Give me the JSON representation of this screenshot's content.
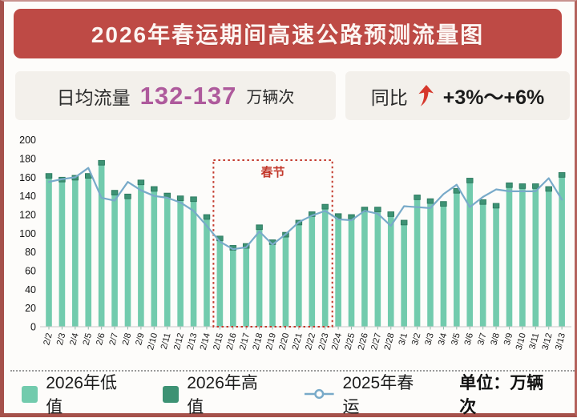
{
  "header": {
    "title": "2026年春运期间高速公路预测流量图"
  },
  "stats": {
    "daily": {
      "label": "日均流量",
      "value": "132-137",
      "unit": "万辆次",
      "value_color": "#ae5a9c"
    },
    "yoy": {
      "label": "同比",
      "arrow_icon": "up-arrow",
      "arrow_color": "#d6382c",
      "value": "+3%～+6%"
    }
  },
  "chart_data": {
    "type": "bar",
    "subtype": "grouped-bar-with-line-overlay",
    "categories": [
      "2/2",
      "2/3",
      "2/4",
      "2/5",
      "2/6",
      "2/7",
      "2/8",
      "2/9",
      "2/10",
      "2/11",
      "2/12",
      "2/13",
      "2/14",
      "2/15",
      "2/16",
      "2/17",
      "2/18",
      "2/19",
      "2/20",
      "2/21",
      "2/22",
      "2/23",
      "2/24",
      "2/25",
      "2/26",
      "2/27",
      "2/28",
      "3/1",
      "3/2",
      "3/3",
      "3/4",
      "3/5",
      "3/6",
      "3/7",
      "3/8",
      "3/9",
      "3/10",
      "3/11",
      "3/12",
      "3/13"
    ],
    "series": [
      {
        "name": "2026年低值",
        "type": "bar-low",
        "color": "#72cbad",
        "values": [
          159,
          155,
          157,
          159,
          173,
          141,
          137,
          152,
          145,
          138,
          135,
          134,
          115,
          92,
          82,
          84,
          104,
          88,
          96,
          109,
          118,
          126,
          116,
          115,
          123,
          123,
          118,
          109,
          136,
          132,
          129,
          143,
          154,
          131,
          127,
          149,
          148,
          148,
          145,
          160
        ]
      },
      {
        "name": "2026年高值",
        "type": "bar-high-cap",
        "color": "#3d9274",
        "border_color": "#2c7a5f",
        "values": [
          164,
          160,
          162,
          164,
          178,
          146,
          142,
          157,
          150,
          143,
          140,
          139,
          120,
          97,
          87,
          89,
          109,
          93,
          101,
          114,
          123,
          131,
          121,
          120,
          128,
          128,
          123,
          114,
          141,
          137,
          134,
          148,
          159,
          136,
          132,
          154,
          153,
          153,
          150,
          165
        ]
      },
      {
        "name": "2025年春运",
        "type": "line",
        "color": "#78aac9",
        "values": [
          155,
          158,
          160,
          170,
          138,
          135,
          155,
          146,
          140,
          138,
          133,
          124,
          108,
          91,
          83,
          85,
          102,
          88,
          99,
          112,
          119,
          124,
          115,
          114,
          124,
          121,
          108,
          129,
          128,
          127,
          142,
          152,
          128,
          139,
          147,
          145,
          145,
          145,
          159,
          136
        ]
      }
    ],
    "ylim": [
      0,
      200
    ],
    "ytick_step": 20,
    "grid": false,
    "annotation": {
      "label": "春节",
      "from_category": "2/15",
      "to_category": "2/23",
      "box_color": "#c3392c"
    },
    "legend_position": "bottom",
    "unit_note": "单位：万辆次"
  },
  "legend": {
    "items": [
      {
        "label": "2026年低值",
        "swatch_color": "#72cbad",
        "icon": "square-swatch"
      },
      {
        "label": "2026年高值",
        "swatch_color": "#3d9274",
        "icon": "square-swatch"
      },
      {
        "label": "2025年春运",
        "swatch_color": "#78aac9",
        "icon": "line-marker"
      }
    ],
    "unit_note": "单位：万辆次"
  }
}
